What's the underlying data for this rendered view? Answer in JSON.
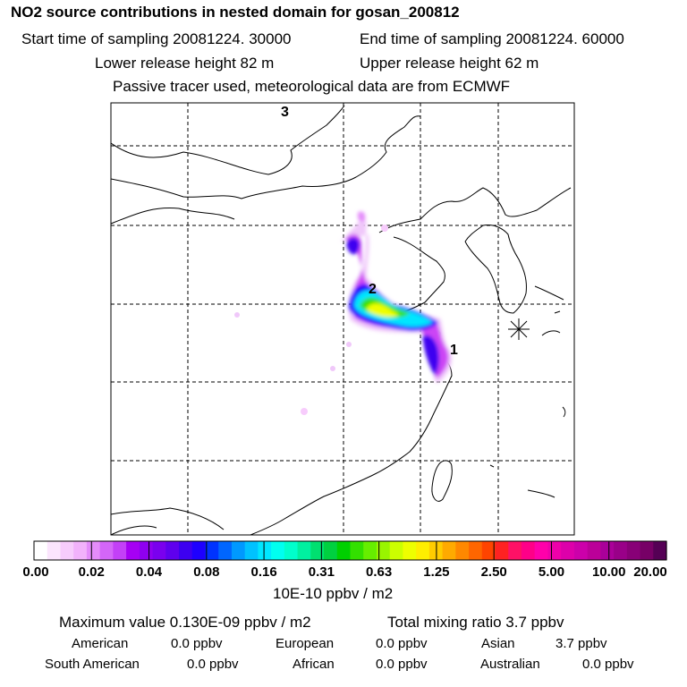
{
  "header": {
    "title": "NO2 source contributions in nested domain for gosan_200812",
    "start_time": "Start time of sampling 20081224. 30000",
    "end_time": "End time of sampling 20081224. 60000",
    "lower_release": "Lower release height   82 m",
    "upper_release": "Upper release height   62 m",
    "passive_note": "Passive tracer used, meteorological data are from ECMWF"
  },
  "map": {
    "source_labels": [
      "1",
      "2",
      "3"
    ],
    "receptor_symbol": "gosan-receptor-star",
    "colors": {
      "border": "#000000",
      "grid": "#000000"
    }
  },
  "colorbar": {
    "tick_labels": [
      "0.00",
      "0.02",
      "0.04",
      "0.08",
      "0.16",
      "0.31",
      "0.63",
      "1.25",
      "2.50",
      "5.00",
      "10.00",
      "20.00"
    ],
    "colors": [
      "#ffffff",
      "#fbe5fd",
      "#f7ccfc",
      "#f2b2fb",
      "#e48cfa",
      "#d466f8",
      "#c340f7",
      "#a600f4",
      "#8f00f0",
      "#7a00ee",
      "#5f00ee",
      "#3d00f0",
      "#1e00ff",
      "#0033ff",
      "#0066ff",
      "#0099ff",
      "#00c2ff",
      "#00e6ff",
      "#00fff0",
      "#00ffcc",
      "#00f0a0",
      "#00e070",
      "#00d040",
      "#00d000",
      "#33e000",
      "#66ee00",
      "#99f500",
      "#ccff00",
      "#eeff00",
      "#ffee00",
      "#ffcc00",
      "#ffaa00",
      "#ff8800",
      "#ff6600",
      "#ff4400",
      "#ff2222",
      "#ff1166",
      "#ff0088",
      "#ff00aa",
      "#ee00aa",
      "#dd00aa",
      "#cc00aa",
      "#bb0099",
      "#aa0099",
      "#990088",
      "#880077",
      "#770066",
      "#550055"
    ],
    "units": "10E-10 ppbv / m2"
  },
  "stats": {
    "max_value": "Maximum value  0.130E-09 ppbv / m2",
    "total_mixing": "Total mixing ratio        3.7 ppbv",
    "regions": [
      {
        "name": "American",
        "value": "0.0 ppbv"
      },
      {
        "name": "European",
        "value": "0.0 ppbv"
      },
      {
        "name": "Asian",
        "value": "3.7 ppbv"
      },
      {
        "name": "South American",
        "value": "0.0 ppbv"
      },
      {
        "name": "African",
        "value": "0.0 ppbv"
      },
      {
        "name": "Australian",
        "value": "0.0 ppbv"
      }
    ]
  }
}
